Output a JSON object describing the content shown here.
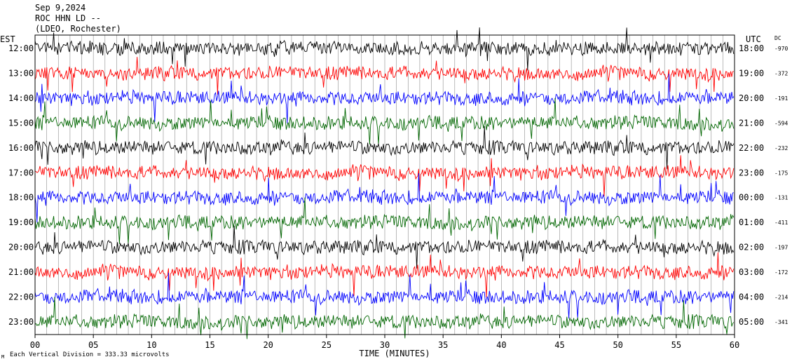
{
  "header": {
    "date": "Sep 9,2024",
    "station": "ROC HHN LD --",
    "location": "(LDEO, Rochester)"
  },
  "chart_data": {
    "type": "line",
    "left_axis_label": "EST",
    "right_axis_label": "UTC",
    "dc_label": "DC",
    "xlabel": "TIME (MINUTES)",
    "footnote": "Each Vertical Division =  333.33 microvolts",
    "footnote_mark": "M",
    "x_range": [
      0,
      60
    ],
    "x_ticks": [
      "00",
      "05",
      "10",
      "15",
      "20",
      "25",
      "30",
      "35",
      "40",
      "45",
      "50",
      "55",
      "60"
    ],
    "grid": "vertical lines every minute",
    "trace_colors": [
      "#000000",
      "#ff0000",
      "#0000ff",
      "#006600"
    ],
    "rows": [
      {
        "est": "12:00",
        "utc": "18:00",
        "dc": "-970"
      },
      {
        "est": "13:00",
        "utc": "19:00",
        "dc": "-372"
      },
      {
        "est": "14:00",
        "utc": "20:00",
        "dc": "-191"
      },
      {
        "est": "15:00",
        "utc": "21:00",
        "dc": "-594"
      },
      {
        "est": "16:00",
        "utc": "22:00",
        "dc": "-232"
      },
      {
        "est": "17:00",
        "utc": "23:00",
        "dc": "-175"
      },
      {
        "est": "18:00",
        "utc": "00:00",
        "dc": "-131"
      },
      {
        "est": "19:00",
        "utc": "01:00",
        "dc": "-411"
      },
      {
        "est": "20:00",
        "utc": "02:00",
        "dc": "-197"
      },
      {
        "est": "21:00",
        "utc": "03:00",
        "dc": "-172"
      },
      {
        "est": "22:00",
        "utc": "04:00",
        "dc": "-214"
      },
      {
        "est": "23:00",
        "utc": "05:00",
        "dc": "-341"
      }
    ]
  }
}
